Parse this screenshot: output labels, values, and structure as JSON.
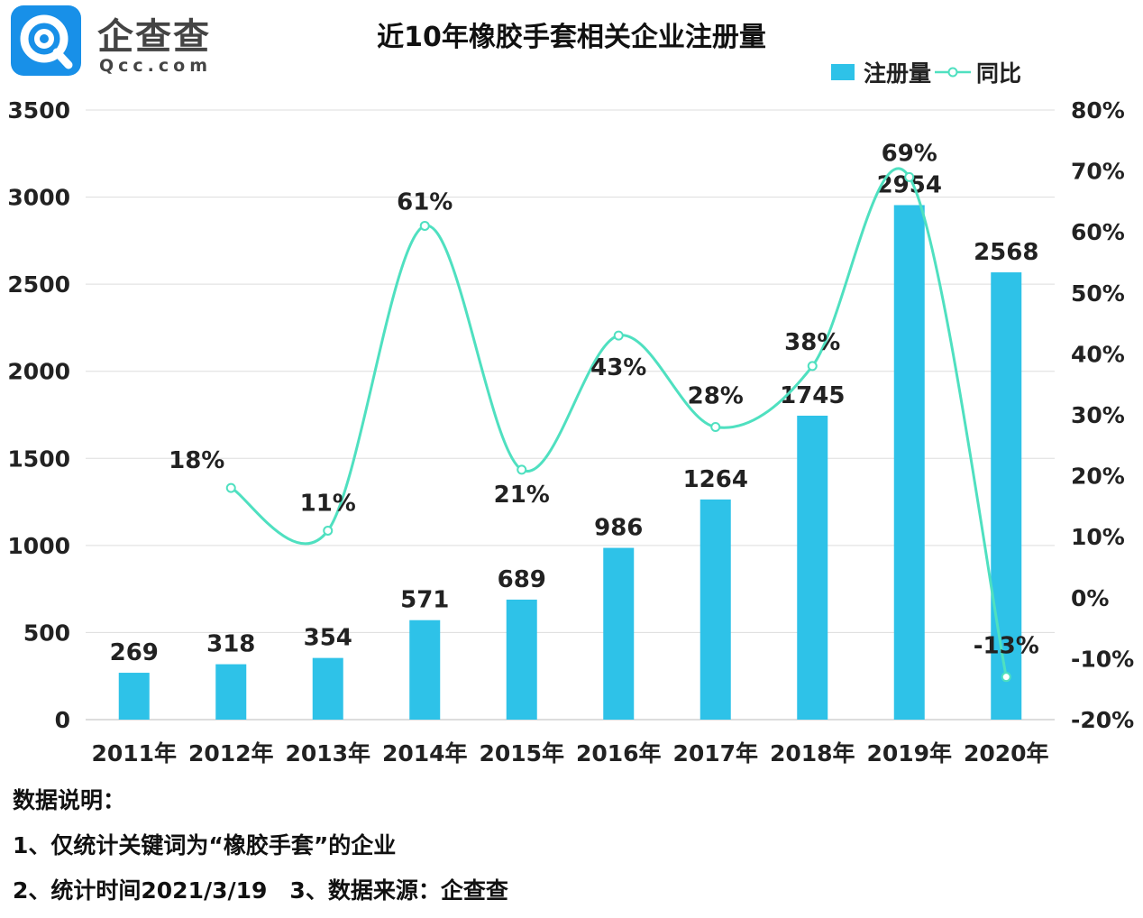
{
  "brand": {
    "name": "企查查",
    "domain": "Qcc.com",
    "color": "#1890e8"
  },
  "chart_data": {
    "type": "bar",
    "title": "近10年橡胶手套相关企业注册量",
    "categories": [
      "2011年",
      "2012年",
      "2013年",
      "2014年",
      "2015年",
      "2016年",
      "2017年",
      "2018年",
      "2019年",
      "2020年"
    ],
    "series": [
      {
        "name": "注册量",
        "type": "bar",
        "axis": "left",
        "color": "#2ec2e8",
        "values": [
          269,
          318,
          354,
          571,
          689,
          986,
          1264,
          1745,
          2954,
          2568
        ],
        "labels": [
          "269",
          "318",
          "354",
          "571",
          "689",
          "986",
          "1264",
          "1745",
          "2954",
          "2568"
        ]
      },
      {
        "name": "同比",
        "type": "line",
        "smooth": true,
        "axis": "right",
        "color": "#4fe0c0",
        "values": [
          null,
          18,
          11,
          61,
          21,
          43,
          28,
          38,
          69,
          -13
        ],
        "labels": [
          "",
          "18%",
          "11%",
          "61%",
          "21%",
          "43%",
          "28%",
          "38%",
          "69%",
          "-13%"
        ]
      }
    ],
    "y_left": {
      "min": 0,
      "max": 3500,
      "ticks": [
        "0",
        "500",
        "1000",
        "1500",
        "2000",
        "2500",
        "3000",
        "3500"
      ]
    },
    "y_right": {
      "min": -20,
      "max": 80,
      "ticks": [
        "-20%",
        "-10%",
        "0%",
        "10%",
        "20%",
        "30%",
        "40%",
        "50%",
        "60%",
        "70%",
        "80%"
      ]
    },
    "grid": true,
    "legend": "top-right"
  },
  "notes": {
    "heading": "数据说明：",
    "line1": "1、仅统计关键词为“橡胶手套”的企业",
    "line2": "2、统计时间2021/3/19　3、数据来源：企查查"
  }
}
